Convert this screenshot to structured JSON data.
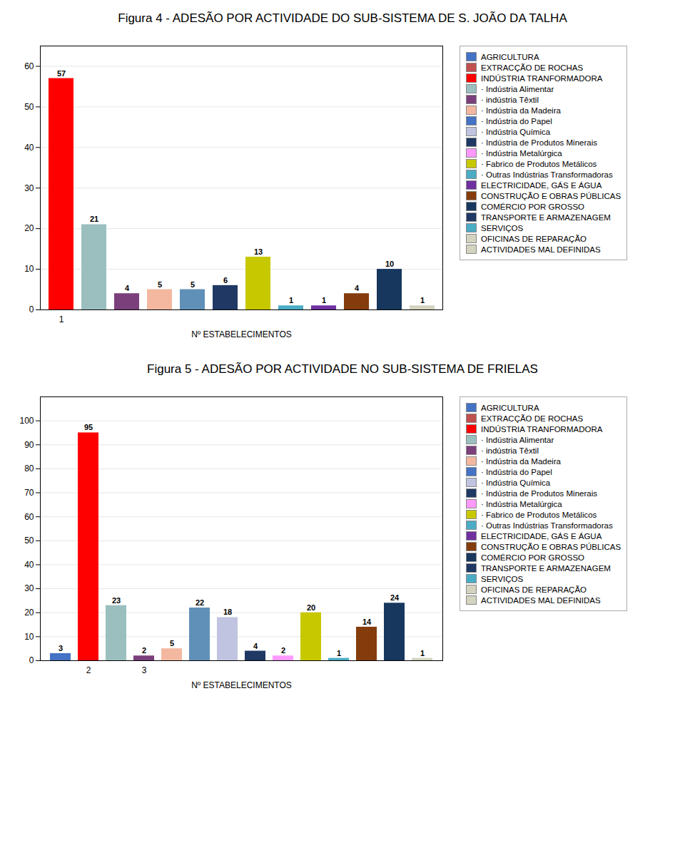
{
  "chart_data": [
    {
      "type": "bar",
      "title": "Figura 4 - ADESÃO POR ACTIVIDADE DO SUB-SISTEMA DE S. JOÃO DA TALHA",
      "xlabel": "Nº ESTABELECIMENTOS",
      "categories": [
        "1",
        null,
        null,
        null,
        null,
        null,
        null,
        null,
        null,
        null,
        null,
        null
      ],
      "values": [
        57,
        21,
        4,
        5,
        5,
        6,
        13,
        1,
        1,
        4,
        10,
        1
      ],
      "colors": [
        "#FF0000",
        "#9BBFBF",
        "#7B3F7B",
        "#F4B8A0",
        "#6090B8",
        "#1F3864",
        "#C8C800",
        "#4BACC6",
        "#7030A0",
        "#843C0C",
        "#17375E",
        "#D3D3C0"
      ],
      "ylim": [
        0,
        65
      ],
      "yticks": [
        0,
        10,
        20,
        30,
        40,
        50,
        60
      ],
      "grid": true,
      "data_labels": true,
      "legend": "right",
      "legend_labels": [
        "AGRICULTURA",
        "EXTRACÇÃO DE ROCHAS",
        "INDÚSTRIA TRANFORMADORA",
        "· Indústria Alimentar",
        "· indústria Têxtil",
        "· Indústria da Madeira",
        "· Indústria do Papel",
        "· Indústria Química",
        "· Indústria de Produtos Minerais",
        "· Indústria Metalúrgica",
        "· Fabrico de Produtos Metálicos",
        "· Outras Indústrias Transformadoras",
        "ELECTRICIDADE, GÁS E ÁGUA",
        "CONSTRUÇÃO E OBRAS PÚBLICAS",
        "COMÉRCIO POR GROSSO",
        "TRANSPORTE E ARMAZENAGEM",
        "SERVIÇOS",
        "OFICINAS DE REPARAÇÃO",
        "ACTIVIDADES MAL DEFINIDAS"
      ],
      "legend_colors": [
        "#4472C4",
        "#C0504D",
        "#FF0000",
        "#9BBFBF",
        "#7B3F7B",
        "#F4B8A0",
        "#4472C4",
        "#C0C4E0",
        "#1F3864",
        "#FF99FF",
        "#C8C800",
        "#4BACC6",
        "#7030A0",
        "#843C0C",
        "#17375E",
        "#1F3864",
        "#4BACC6",
        "#D3D3C0",
        "#D3D3C0"
      ]
    },
    {
      "type": "bar",
      "title": "Figura 5 - ADESÃO POR ACTIVIDADE NO SUB-SISTEMA DE FRIELAS",
      "xlabel": "Nº ESTABELECIMENTOS",
      "categories": [
        null,
        "2",
        null,
        "3",
        null,
        null,
        null,
        null,
        null,
        null,
        null,
        null,
        null,
        null
      ],
      "values": [
        3,
        95,
        23,
        2,
        5,
        22,
        18,
        4,
        2,
        20,
        1,
        14,
        24,
        1
      ],
      "colors": [
        "#4472C4",
        "#FF0000",
        "#9BBFBF",
        "#7B3F7B",
        "#F4B8A0",
        "#6090B8",
        "#C0C4E0",
        "#1F3864",
        "#FF99FF",
        "#C8C800",
        "#4BACC6",
        "#843C0C",
        "#17375E",
        "#D3D3C0"
      ],
      "ylim": [
        0,
        110
      ],
      "yticks": [
        0,
        10,
        20,
        30,
        40,
        50,
        60,
        70,
        80,
        90,
        100
      ],
      "grid": true,
      "data_labels": true,
      "legend": "right",
      "legend_labels": [
        "AGRICULTURA",
        "EXTRACÇÃO DE ROCHAS",
        "INDÚSTRIA TRANFORMADORA",
        "· Indústria Alimentar",
        "· indústria Têxtil",
        "· Indústria da Madeira",
        "· Indústria do Papel",
        "· Indústria Química",
        "· Indústria de Produtos Minerais",
        "· Indústria Metalúrgica",
        "· Fabrico de Produtos Metálicos",
        "· Outras Indústrias Transformadoras",
        "ELECTRICIDADE, GÁS E ÁGUA",
        "CONSTRUÇÃO E OBRAS PÚBLICAS",
        "COMÉRCIO POR GROSSO",
        "TRANSPORTE E ARMAZENAGEM",
        "SERVIÇOS",
        "OFICINAS DE REPARAÇÃO",
        "ACTIVIDADES MAL DEFINIDAS"
      ],
      "legend_colors": [
        "#4472C4",
        "#C0504D",
        "#FF0000",
        "#9BBFBF",
        "#7B3F7B",
        "#F4B8A0",
        "#4472C4",
        "#C0C4E0",
        "#1F3864",
        "#FF99FF",
        "#C8C800",
        "#4BACC6",
        "#7030A0",
        "#843C0C",
        "#17375E",
        "#1F3864",
        "#4BACC6",
        "#D3D3C0",
        "#D3D3C0"
      ]
    }
  ]
}
